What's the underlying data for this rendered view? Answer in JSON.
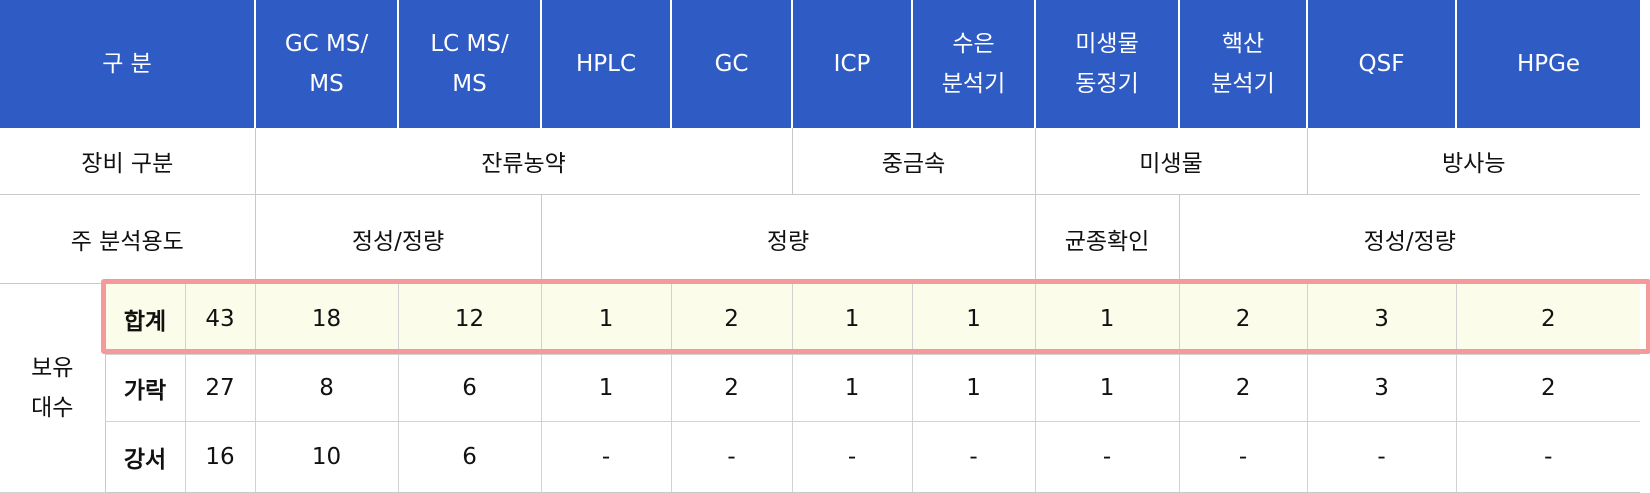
{
  "header": {
    "category": "구 분",
    "columns": [
      [
        "GC MS/",
        "MS"
      ],
      [
        "LC MS/",
        "MS"
      ],
      [
        "HPLC"
      ],
      [
        "GC"
      ],
      [
        "ICP"
      ],
      [
        "수은",
        "분석기"
      ],
      [
        "미생물",
        "동정기"
      ],
      [
        "핵산",
        "분석기"
      ],
      [
        "QSF"
      ],
      [
        "HPGe"
      ]
    ]
  },
  "equipment_type": {
    "label": "장비 구분",
    "groups": [
      "잔류농약",
      "중금속",
      "미생물",
      "방사능"
    ]
  },
  "purpose": {
    "label": "주 분석용도",
    "groups": [
      "정성/정량",
      "정량",
      "균종확인",
      "정성/정량"
    ]
  },
  "holdings": {
    "label_line1": "보유",
    "label_line2": "대수",
    "rows": [
      {
        "name": "합계",
        "total": "43",
        "values": [
          "18",
          "12",
          "1",
          "2",
          "1",
          "1",
          "1",
          "2",
          "3",
          "2"
        ]
      },
      {
        "name": "가락",
        "total": "27",
        "values": [
          "8",
          "6",
          "1",
          "2",
          "1",
          "1",
          "1",
          "2",
          "3",
          "2"
        ]
      },
      {
        "name": "강서",
        "total": "16",
        "values": [
          "10",
          "6",
          "-",
          "-",
          "-",
          "-",
          "-",
          "-",
          "-",
          "-"
        ]
      }
    ]
  },
  "colors": {
    "header_bg": "#2f5bc4",
    "header_text": "#ffffff",
    "sum_row_bg": "#fbfce9",
    "highlight_border": "#f59a9a"
  }
}
